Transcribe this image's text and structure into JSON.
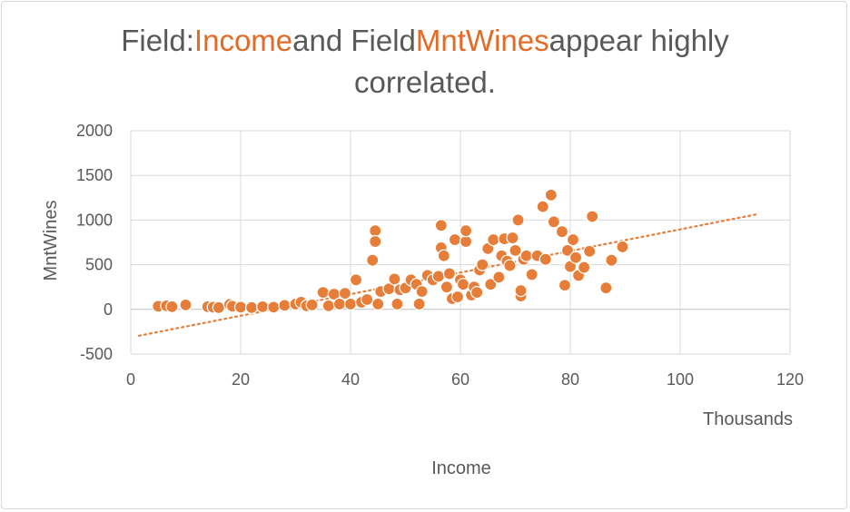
{
  "chart_data": {
    "type": "scatter",
    "title_parts": {
      "p1": "Field:",
      "field1": "Income",
      "p2": "and Field",
      "field2": "MntWines",
      "p3": "appear highly",
      "p4": "correlated."
    },
    "xlabel": "Income",
    "ylabel": "MntWines",
    "x_units_label": "Thousands",
    "xlim": [
      0,
      120
    ],
    "ylim": [
      -500,
      2000
    ],
    "x_ticks": [
      "0",
      "20",
      "40",
      "60",
      "80",
      "100",
      "120"
    ],
    "y_ticks": [
      "2000",
      "1500",
      "1000",
      "500",
      "0",
      "-500"
    ],
    "grid": true,
    "marker_color": "#e67e3a",
    "trendline": {
      "type": "linear",
      "x": [
        1.5,
        114
      ],
      "y": [
        -295,
        1065
      ],
      "color": "#e67e3a",
      "style": "dotted"
    },
    "points": [
      [
        5,
        35
      ],
      [
        6.5,
        40
      ],
      [
        7.5,
        30
      ],
      [
        10,
        50
      ],
      [
        14,
        30
      ],
      [
        15,
        25
      ],
      [
        16,
        20
      ],
      [
        18,
        55
      ],
      [
        18.5,
        35
      ],
      [
        20,
        25
      ],
      [
        22,
        20
      ],
      [
        24,
        30
      ],
      [
        26,
        25
      ],
      [
        28,
        45
      ],
      [
        30,
        60
      ],
      [
        31,
        80
      ],
      [
        32,
        40
      ],
      [
        33,
        50
      ],
      [
        35,
        190
      ],
      [
        36,
        40
      ],
      [
        37,
        170
      ],
      [
        38,
        60
      ],
      [
        39,
        180
      ],
      [
        40,
        60
      ],
      [
        41,
        330
      ],
      [
        42,
        80
      ],
      [
        43,
        110
      ],
      [
        44,
        550
      ],
      [
        44.5,
        880
      ],
      [
        44.5,
        760
      ],
      [
        45,
        60
      ],
      [
        45.5,
        200
      ],
      [
        47,
        230
      ],
      [
        48,
        340
      ],
      [
        48.5,
        60
      ],
      [
        49,
        220
      ],
      [
        50,
        240
      ],
      [
        51,
        330
      ],
      [
        52,
        280
      ],
      [
        52.5,
        60
      ],
      [
        53,
        200
      ],
      [
        54,
        380
      ],
      [
        55,
        330
      ],
      [
        56,
        370
      ],
      [
        56.5,
        690
      ],
      [
        56.5,
        940
      ],
      [
        57,
        600
      ],
      [
        57.5,
        250
      ],
      [
        58,
        400
      ],
      [
        58.5,
        120
      ],
      [
        59,
        780
      ],
      [
        59.5,
        140
      ],
      [
        60,
        330
      ],
      [
        60.5,
        280
      ],
      [
        61,
        760
      ],
      [
        61,
        880
      ],
      [
        62,
        160
      ],
      [
        62.5,
        250
      ],
      [
        63,
        190
      ],
      [
        63.5,
        440
      ],
      [
        64,
        500
      ],
      [
        65,
        680
      ],
      [
        65.5,
        280
      ],
      [
        66,
        780
      ],
      [
        67,
        360
      ],
      [
        67.5,
        600
      ],
      [
        68,
        790
      ],
      [
        68.5,
        540
      ],
      [
        69,
        490
      ],
      [
        69.5,
        800
      ],
      [
        70,
        660
      ],
      [
        70.5,
        1000
      ],
      [
        71,
        150
      ],
      [
        71,
        210
      ],
      [
        71.5,
        560
      ],
      [
        72,
        600
      ],
      [
        73,
        390
      ],
      [
        74,
        600
      ],
      [
        75,
        1150
      ],
      [
        75.5,
        560
      ],
      [
        76.5,
        1280
      ],
      [
        77,
        980
      ],
      [
        78.5,
        870
      ],
      [
        79,
        270
      ],
      [
        79.5,
        660
      ],
      [
        80,
        480
      ],
      [
        80.5,
        780
      ],
      [
        81,
        580
      ],
      [
        81.5,
        380
      ],
      [
        82.5,
        470
      ],
      [
        83.5,
        650
      ],
      [
        84,
        1040
      ],
      [
        86.5,
        240
      ],
      [
        87.5,
        550
      ],
      [
        89.5,
        700
      ]
    ]
  }
}
